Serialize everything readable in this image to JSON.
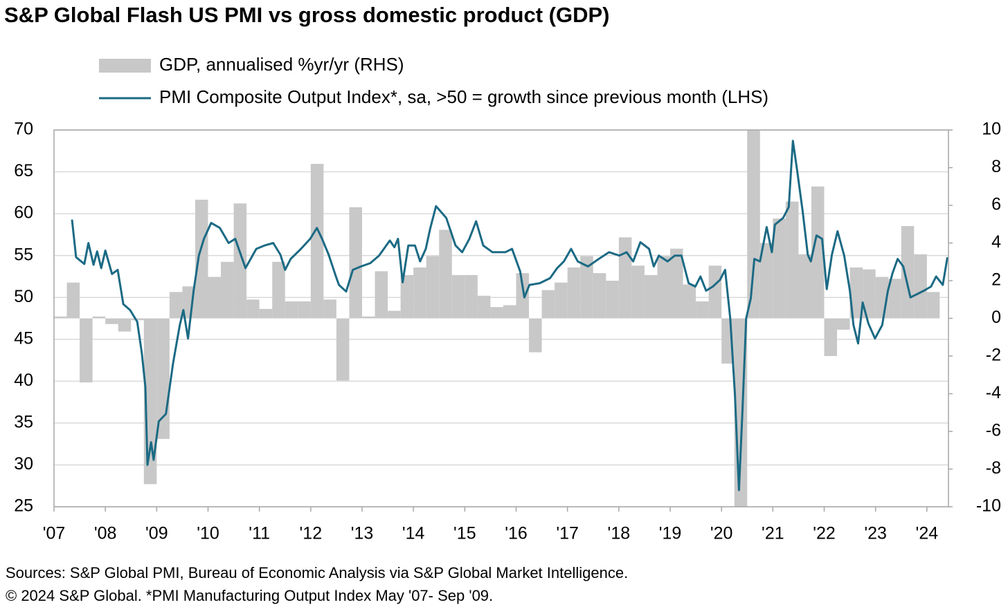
{
  "chart_data": {
    "type": "combo",
    "title": "S&P Global Flash US PMI vs gross domestic product (GDP)",
    "notes": [
      "Sources: S&P Global PMI, Bureau of Economic Analysis via S&P Global Market Intelligence.",
      "© 2024 S&P Global.  *PMI Manufacturing Output Index May '07- Sep '09."
    ],
    "xlim": [
      2007,
      2024.42
    ],
    "xticks": [
      {
        "value": 2007,
        "label": "'07"
      },
      {
        "value": 2008,
        "label": "'08"
      },
      {
        "value": 2009,
        "label": "'09"
      },
      {
        "value": 2010,
        "label": "'10"
      },
      {
        "value": 2011,
        "label": "'11"
      },
      {
        "value": 2012,
        "label": "'12"
      },
      {
        "value": 2013,
        "label": "'13"
      },
      {
        "value": 2014,
        "label": "'14"
      },
      {
        "value": 2015,
        "label": "'15"
      },
      {
        "value": 2016,
        "label": "'16"
      },
      {
        "value": 2017,
        "label": "'17"
      },
      {
        "value": 2018,
        "label": "'18"
      },
      {
        "value": 2019,
        "label": "'19"
      },
      {
        "value": 2020,
        "label": "'20"
      },
      {
        "value": 2021,
        "label": "'21"
      },
      {
        "value": 2022,
        "label": "'22"
      },
      {
        "value": 2023,
        "label": "'23"
      },
      {
        "value": 2024,
        "label": "'24"
      }
    ],
    "ylim": [
      25,
      70
    ],
    "yticks": [
      25,
      30,
      35,
      40,
      45,
      50,
      55,
      60,
      65,
      70
    ],
    "y2lim": [
      -10,
      10
    ],
    "y2ticks": [
      -10,
      -8,
      -6,
      -4,
      -2,
      0,
      2,
      4,
      6,
      8,
      10
    ],
    "grid": true,
    "series": [
      {
        "name": "GDP, annualised %yr/yr (RHS)",
        "type": "bar",
        "axis": "y2",
        "color": "#c8c8c8",
        "x": [
          2007,
          2007.25,
          2007.5,
          2007.75,
          2008,
          2008.25,
          2008.5,
          2008.75,
          2009,
          2009.25,
          2009.5,
          2009.75,
          2010,
          2010.25,
          2010.5,
          2010.75,
          2011,
          2011.25,
          2011.5,
          2011.75,
          2012,
          2012.25,
          2012.5,
          2012.75,
          2013,
          2013.25,
          2013.5,
          2013.75,
          2014,
          2014.25,
          2014.5,
          2014.75,
          2015,
          2015.25,
          2015.5,
          2015.75,
          2016,
          2016.25,
          2016.5,
          2016.75,
          2017,
          2017.25,
          2017.5,
          2017.75,
          2018,
          2018.25,
          2018.5,
          2018.75,
          2019,
          2019.25,
          2019.5,
          2019.75,
          2020,
          2020.25,
          2020.5,
          2020.75,
          2021,
          2021.25,
          2021.5,
          2021.75,
          2022,
          2022.25,
          2022.5,
          2022.75,
          2023,
          2023.25,
          2023.5,
          2023.75,
          2024
        ],
        "values": [
          0.1,
          1.9,
          -3.4,
          0.1,
          -0.3,
          -0.7,
          -0.1,
          -8.8,
          -6.4,
          1.4,
          1.7,
          6.3,
          2.2,
          3.0,
          6.1,
          1.0,
          0.5,
          3.0,
          0.9,
          0.9,
          8.2,
          1.0,
          -3.3,
          5.9,
          0.1,
          2.5,
          0.4,
          2.3,
          2.7,
          3.3,
          4.7,
          2.3,
          2.3,
          1.2,
          0.6,
          0.7,
          2.4,
          -1.8,
          1.5,
          1.9,
          2.7,
          3.3,
          2.4,
          2.0,
          4.3,
          2.8,
          2.3,
          3.3,
          3.7,
          1.8,
          0.9,
          2.8,
          -2.4,
          -10,
          10,
          4.0,
          5.3,
          6.2,
          3.4,
          7.0,
          -2.0,
          -0.6,
          2.7,
          2.6,
          2.2,
          2.1,
          4.9,
          3.4,
          1.4
        ]
      },
      {
        "name": "PMI Composite Output Index*, sa, >50 = growth since previous month (LHS)",
        "type": "line",
        "color": "#1b6a84",
        "x": [
          2007.35,
          2007.43,
          2007.59,
          2007.67,
          2007.77,
          2007.84,
          2007.92,
          2008.0,
          2008.13,
          2008.24,
          2008.35,
          2008.48,
          2008.62,
          2008.71,
          2008.78,
          2008.82,
          2008.89,
          2008.94,
          2009.04,
          2009.18,
          2009.32,
          2009.45,
          2009.52,
          2009.61,
          2009.72,
          2009.82,
          2009.92,
          2010.06,
          2010.23,
          2010.4,
          2010.53,
          2010.73,
          2010.94,
          2011.1,
          2011.27,
          2011.41,
          2011.5,
          2011.61,
          2011.81,
          2011.99,
          2012.12,
          2012.22,
          2012.35,
          2012.49,
          2012.55,
          2012.69,
          2012.82,
          2012.98,
          2013.16,
          2013.33,
          2013.54,
          2013.63,
          2013.7,
          2013.79,
          2013.9,
          2014.03,
          2014.13,
          2014.24,
          2014.33,
          2014.44,
          2014.64,
          2014.82,
          2014.95,
          2015.09,
          2015.22,
          2015.36,
          2015.54,
          2015.79,
          2015.92,
          2016.08,
          2016.16,
          2016.26,
          2016.46,
          2016.66,
          2016.8,
          2016.93,
          2017.07,
          2017.2,
          2017.4,
          2017.61,
          2017.81,
          2018.01,
          2018.15,
          2018.28,
          2018.42,
          2018.59,
          2018.68,
          2018.78,
          2018.95,
          2019.09,
          2019.22,
          2019.36,
          2019.49,
          2019.59,
          2019.7,
          2019.83,
          2019.97,
          2020.07,
          2020.17,
          2020.26,
          2020.34,
          2020.41,
          2020.48,
          2020.57,
          2020.64,
          2020.75,
          2020.88,
          2020.98,
          2021.04,
          2021.2,
          2021.31,
          2021.39,
          2021.47,
          2021.58,
          2021.68,
          2021.74,
          2021.85,
          2021.96,
          2022.05,
          2022.15,
          2022.26,
          2022.39,
          2022.5,
          2022.57,
          2022.66,
          2022.75,
          2022.86,
          2022.99,
          2023.13,
          2023.24,
          2023.33,
          2023.43,
          2023.54,
          2023.68,
          2023.81,
          2023.94,
          2024.08,
          2024.18,
          2024.31,
          2024.4
        ],
        "values": [
          59.3,
          54.8,
          54.0,
          56.5,
          53.9,
          55.5,
          53.5,
          55.6,
          52.8,
          53.3,
          49.2,
          48.5,
          47.1,
          43.4,
          39.3,
          30.0,
          32.7,
          30.6,
          35.2,
          36.1,
          42.2,
          46.7,
          48.5,
          45.1,
          50.8,
          55.0,
          57.0,
          58.9,
          58.3,
          56.5,
          57.0,
          53.5,
          55.8,
          56.2,
          56.5,
          55.1,
          53.3,
          54.6,
          55.8,
          57.0,
          58.3,
          57.0,
          55.1,
          52.5,
          51.5,
          50.7,
          53.3,
          53.7,
          54.1,
          55.0,
          56.8,
          56.0,
          57.0,
          51.8,
          56.2,
          56.2,
          54.3,
          55.8,
          58.3,
          60.9,
          59.5,
          56.2,
          55.4,
          57.0,
          59.1,
          56.2,
          55.4,
          55.4,
          55.8,
          53.1,
          50.0,
          51.5,
          51.7,
          52.3,
          53.5,
          54.3,
          55.8,
          54.3,
          53.7,
          54.6,
          55.4,
          55.0,
          55.4,
          54.3,
          56.6,
          55.8,
          53.7,
          55.0,
          54.3,
          55.0,
          55.0,
          51.7,
          51.3,
          52.5,
          50.8,
          51.3,
          52.1,
          53.3,
          47.5,
          38.5,
          27.0,
          36.8,
          47.5,
          49.9,
          54.6,
          54.3,
          58.4,
          55.4,
          58.7,
          59.5,
          60.8,
          68.7,
          65.3,
          60.3,
          55.1,
          54.3,
          57.4,
          57.0,
          51.0,
          55.1,
          57.9,
          55.0,
          50.8,
          46.7,
          44.5,
          49.4,
          46.9,
          45.1,
          46.7,
          50.8,
          52.9,
          54.6,
          53.7,
          50.0,
          50.4,
          50.8,
          51.3,
          52.5,
          51.5,
          54.8
        ]
      }
    ]
  }
}
